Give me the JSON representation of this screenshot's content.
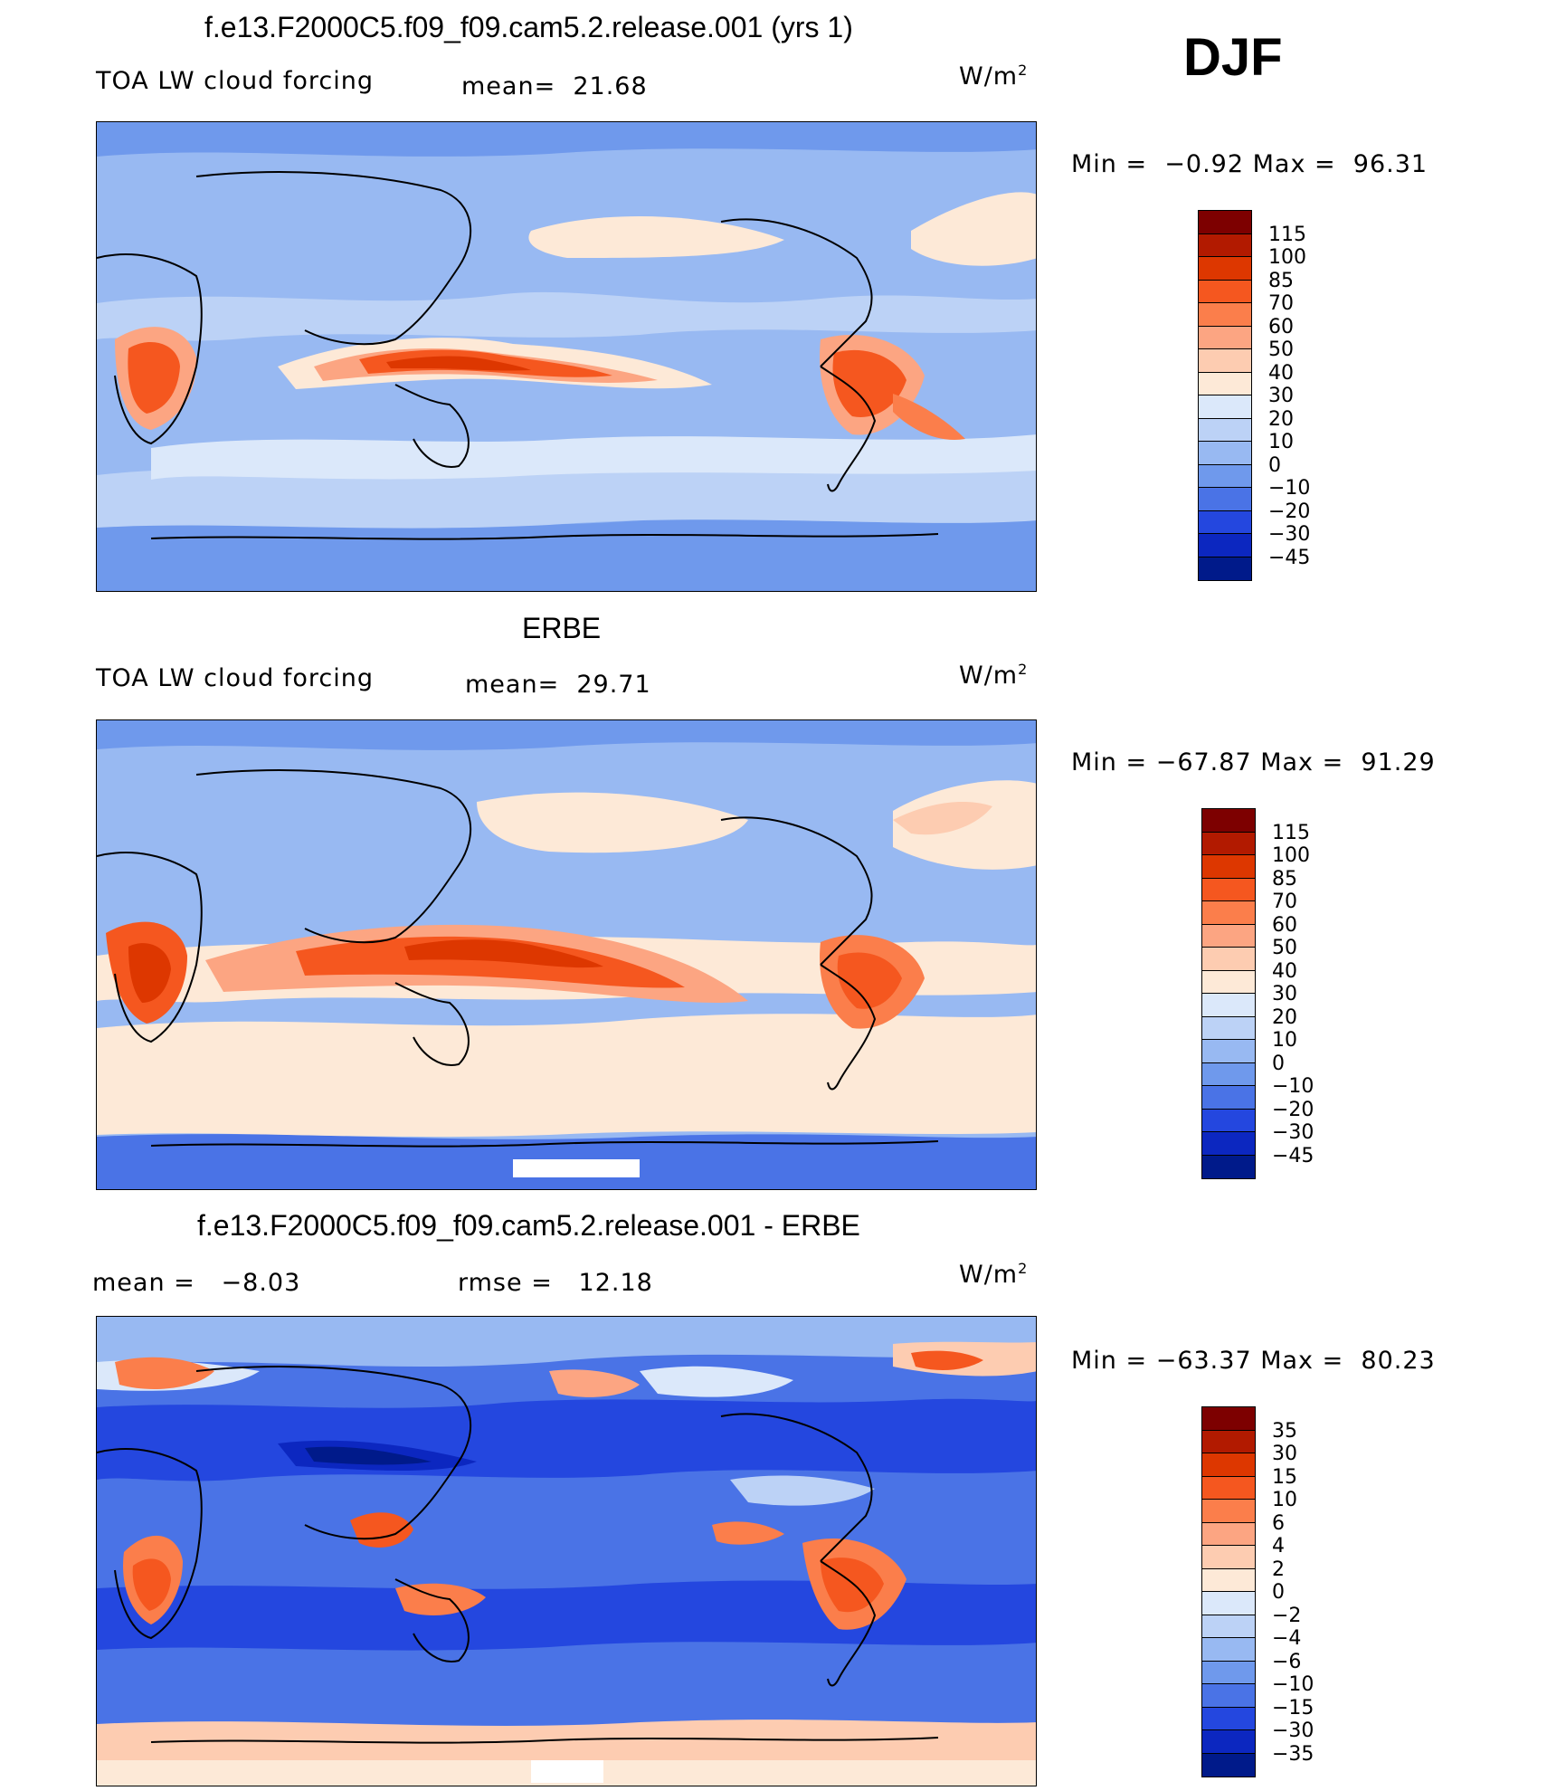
{
  "season": "DJF",
  "panels": [
    {
      "title": "f.e13.F2000C5.f09_f09.cam5.2.release.001 (yrs 1)",
      "left_label": "TOA LW cloud forcing",
      "mid_label": "mean=  21.68",
      "unit_base": "W/m",
      "unit_sup": "2",
      "minmax": "Min =  −0.92 Max =  96.31",
      "colorbar": {
        "colors": [
          "#7d0000",
          "#b21a00",
          "#dd3700",
          "#f5571f",
          "#fb7e4b",
          "#fca582",
          "#fdccb1",
          "#fde9d7",
          "#dbe8fa",
          "#bcd2f6",
          "#98b9f2",
          "#6f99ec",
          "#4a73e6",
          "#2447df",
          "#0c27c0",
          "#001a8a"
        ],
        "labels": [
          "115",
          "100",
          "85",
          "70",
          "60",
          "50",
          "40",
          "30",
          "20",
          "10",
          "0",
          "−10",
          "−20",
          "−30",
          "−45"
        ]
      }
    },
    {
      "title": "ERBE",
      "left_label": "TOA LW cloud forcing",
      "mid_label": "mean=  29.71",
      "unit_base": "W/m",
      "unit_sup": "2",
      "minmax": "Min = −67.87 Max =  91.29",
      "colorbar": {
        "colors": [
          "#7d0000",
          "#b21a00",
          "#dd3700",
          "#f5571f",
          "#fb7e4b",
          "#fca582",
          "#fdccb1",
          "#fde9d7",
          "#dbe8fa",
          "#bcd2f6",
          "#98b9f2",
          "#6f99ec",
          "#4a73e6",
          "#2447df",
          "#0c27c0",
          "#001a8a"
        ],
        "labels": [
          "115",
          "100",
          "85",
          "70",
          "60",
          "50",
          "40",
          "30",
          "20",
          "10",
          "0",
          "−10",
          "−20",
          "−30",
          "−45"
        ]
      }
    },
    {
      "title": "f.e13.F2000C5.f09_f09.cam5.2.release.001 - ERBE",
      "left_label": "mean =   −8.03",
      "mid_label": "rmse =   12.18",
      "unit_base": "W/m",
      "unit_sup": "2",
      "minmax": "Min = −63.37 Max =  80.23",
      "colorbar": {
        "colors": [
          "#7d0000",
          "#b21a00",
          "#dd3700",
          "#f5571f",
          "#fb7e4b",
          "#fca582",
          "#fdccb1",
          "#fde9d7",
          "#dbe8fa",
          "#bcd2f6",
          "#98b9f2",
          "#6f99ec",
          "#4a73e6",
          "#2447df",
          "#0c27c0",
          "#001a8a"
        ],
        "labels": [
          "35",
          "30",
          "15",
          "10",
          "6",
          "4",
          "2",
          "0",
          "−2",
          "−4",
          "−6",
          "−10",
          "−15",
          "−30",
          "−35"
        ]
      }
    }
  ],
  "chart_data": [
    {
      "type": "heatmap",
      "title": "f.e13.F2000C5.f09_f09.cam5.2.release.001 (yrs 1)",
      "variable": "TOA LW cloud forcing",
      "units": "W/m2",
      "mean": 21.68,
      "min": -0.92,
      "max": 96.31,
      "contour_levels": [
        -45,
        -30,
        -20,
        -10,
        0,
        10,
        20,
        30,
        40,
        50,
        60,
        70,
        85,
        100,
        115
      ]
    },
    {
      "type": "heatmap",
      "title": "ERBE",
      "variable": "TOA LW cloud forcing",
      "units": "W/m2",
      "mean": 29.71,
      "min": -67.87,
      "max": 91.29,
      "contour_levels": [
        -45,
        -30,
        -20,
        -10,
        0,
        10,
        20,
        30,
        40,
        50,
        60,
        70,
        85,
        100,
        115
      ]
    },
    {
      "type": "heatmap",
      "title": "f.e13.F2000C5.f09_f09.cam5.2.release.001 - ERBE",
      "units": "W/m2",
      "mean": -8.03,
      "rmse": 12.18,
      "min": -63.37,
      "max": 80.23,
      "contour_levels": [
        -35,
        -30,
        -15,
        -10,
        -6,
        -4,
        -2,
        0,
        2,
        4,
        6,
        10,
        15,
        30,
        35
      ]
    }
  ]
}
